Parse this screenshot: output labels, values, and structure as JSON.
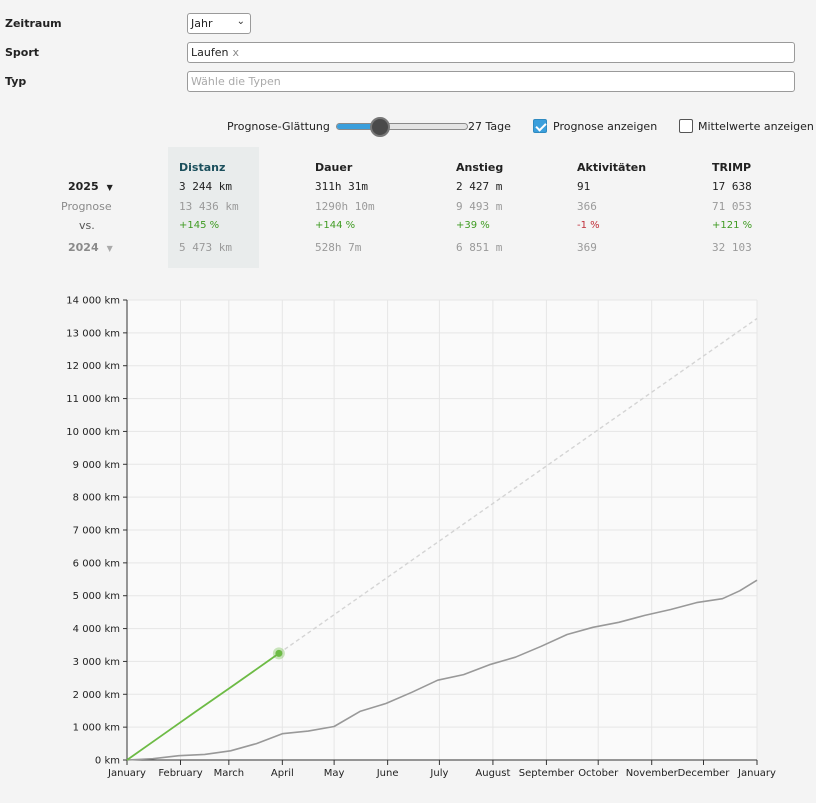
{
  "filters": {
    "period_label": "Zeitraum",
    "period_value": "Jahr",
    "sport_label": "Sport",
    "sport_tag": "Laufen",
    "sport_tag_remove": "x",
    "type_label": "Typ",
    "type_placeholder": "Wähle die Typen"
  },
  "controls": {
    "smoothing_label": "Prognose-Glättung",
    "smoothing_value": "27 Tage",
    "smoothing_fraction": 0.33,
    "show_forecast_label": "Prognose anzeigen",
    "show_forecast_checked": true,
    "show_averages_label": "Mittelwerte anzeigen",
    "show_averages_checked": false
  },
  "stats": {
    "columns": [
      "Distanz",
      "Dauer",
      "Anstieg",
      "Aktivitäten",
      "TRIMP"
    ],
    "active_column": "Distanz",
    "current_year": "2025",
    "forecast_label": "Prognose",
    "vs_label": "vs.",
    "previous_year": "2024",
    "current": [
      "3 244 km",
      "311h 31m",
      "2 427 m",
      "91",
      "17 638"
    ],
    "forecast": [
      "13 436 km",
      "1290h 10m",
      "9 493 m",
      "366",
      "71 053"
    ],
    "change": [
      "+145 %",
      "+144 %",
      "+39 %",
      "-1 %",
      "+121 %"
    ],
    "previous": [
      "5 473 km",
      "528h 7m",
      "6 851 m",
      "369",
      "32 103"
    ]
  },
  "colors": {
    "current_series": "#6dbb45",
    "previous_series": "#999999",
    "forecast_series": "#d4d4d4",
    "positive": "#3f9b22",
    "negative": "#c0303a",
    "accent": "#3b9fdc"
  },
  "chart_data": {
    "type": "line",
    "ylim": [
      0,
      14000
    ],
    "yticks": [
      0,
      1000,
      2000,
      3000,
      4000,
      5000,
      6000,
      7000,
      8000,
      9000,
      10000,
      11000,
      12000,
      13000,
      14000
    ],
    "ytick_labels": [
      "0 km",
      "1 000 km",
      "2 000 km",
      "3 000 km",
      "4 000 km",
      "5 000 km",
      "6 000 km",
      "7 000 km",
      "8 000 km",
      "9 000 km",
      "10 000 km",
      "11 000 km",
      "12 000 km",
      "13 000 km",
      "14 000 km"
    ],
    "xlim": [
      0,
      365
    ],
    "xticks": [
      0,
      31,
      59,
      90,
      120,
      151,
      181,
      212,
      243,
      273,
      304,
      334,
      365
    ],
    "xtick_labels": [
      "January",
      "February",
      "March",
      "April",
      "May",
      "June",
      "July",
      "August",
      "September",
      "October",
      "November",
      "December",
      "January"
    ],
    "grid": true,
    "series": [
      {
        "role": "current",
        "x": [
          0,
          20,
          40,
          60,
          80,
          88
        ],
        "y": [
          0,
          740,
          1480,
          2210,
          2950,
          3244
        ]
      },
      {
        "role": "forecast",
        "x": [
          88,
          365
        ],
        "y": [
          3244,
          13436
        ]
      },
      {
        "role": "previous",
        "x": [
          0,
          15,
          30,
          45,
          60,
          75,
          90,
          105,
          120,
          135,
          150,
          165,
          180,
          195,
          210,
          225,
          240,
          255,
          270,
          285,
          300,
          315,
          330,
          345,
          355,
          365
        ],
        "y": [
          0,
          40,
          130,
          170,
          280,
          500,
          800,
          880,
          1020,
          1480,
          1720,
          2060,
          2430,
          2600,
          2900,
          3130,
          3460,
          3820,
          4040,
          4190,
          4400,
          4580,
          4790,
          4910,
          5150,
          5473
        ]
      }
    ],
    "marker": {
      "x": 88,
      "y": 3244
    }
  }
}
